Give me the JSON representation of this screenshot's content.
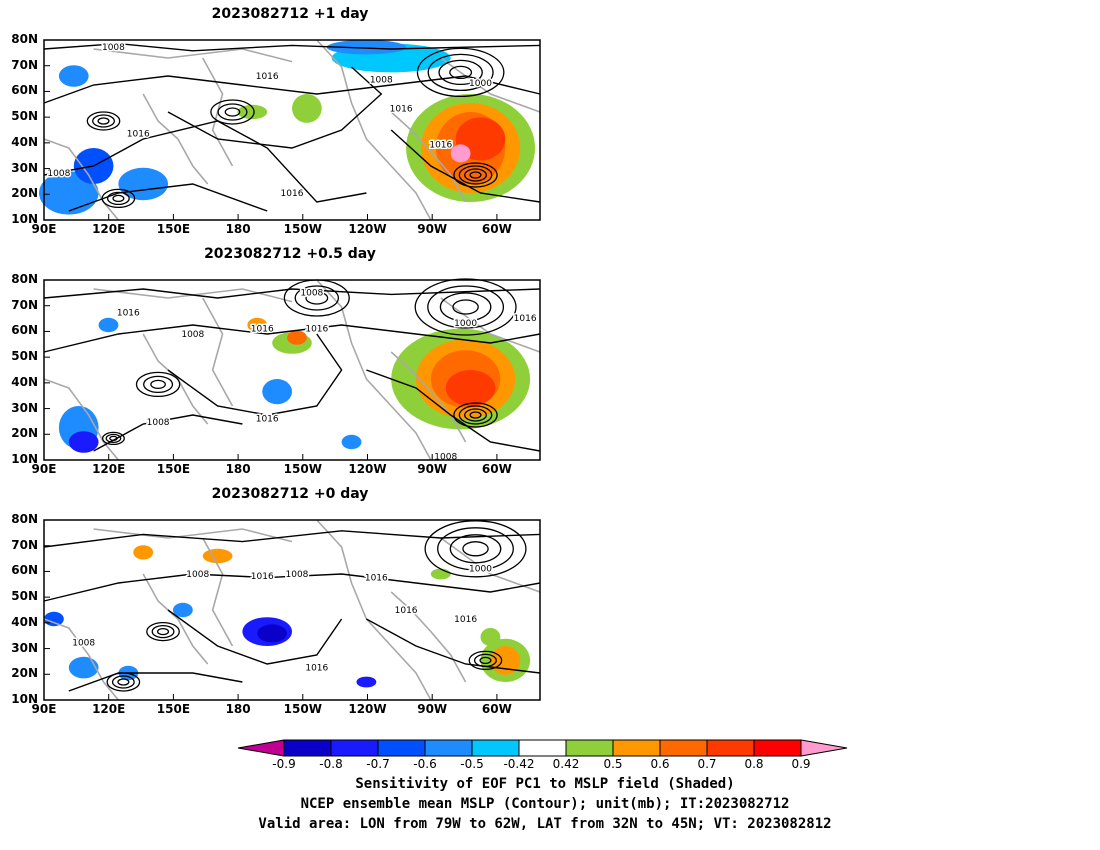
{
  "panels": [
    {
      "title": "2023082712  +1 day"
    },
    {
      "title": "2023082712  +0.5 day"
    },
    {
      "title": "2023082712  +0 day"
    }
  ],
  "y_ticks": [
    "80N",
    "70N",
    "60N",
    "50N",
    "40N",
    "30N",
    "20N",
    "10N"
  ],
  "x_ticks": [
    "90E",
    "120E",
    "150E",
    "180",
    "150W",
    "120W",
    "90W",
    "60W"
  ],
  "contour_labels": [
    "1000",
    "1008",
    "1016"
  ],
  "colorbar": {
    "levels": [
      "-0.9",
      "-0.8",
      "-0.7",
      "-0.6",
      "-0.5",
      "-0.42",
      "0.42",
      "0.5",
      "0.6",
      "0.7",
      "0.8",
      "0.9"
    ],
    "colors": [
      "#c00093",
      "#0a00c8",
      "#1a1aff",
      "#0050ff",
      "#1e8cff",
      "#00c8ff",
      "#ffffff",
      "#8fd03a",
      "#ff9800",
      "#ff6a00",
      "#ff3a00",
      "#ff0000",
      "#ff9ccf"
    ]
  },
  "footer": {
    "line1": "Sensitivity of EOF PC1 to MSLP field (Shaded)",
    "line2": "NCEP ensemble mean MSLP (Contour); unit(mb); IT:2023082712",
    "line3": "Valid area: LON from 79W to 62W, LAT from 32N to 45N; VT: 2023082812"
  }
}
